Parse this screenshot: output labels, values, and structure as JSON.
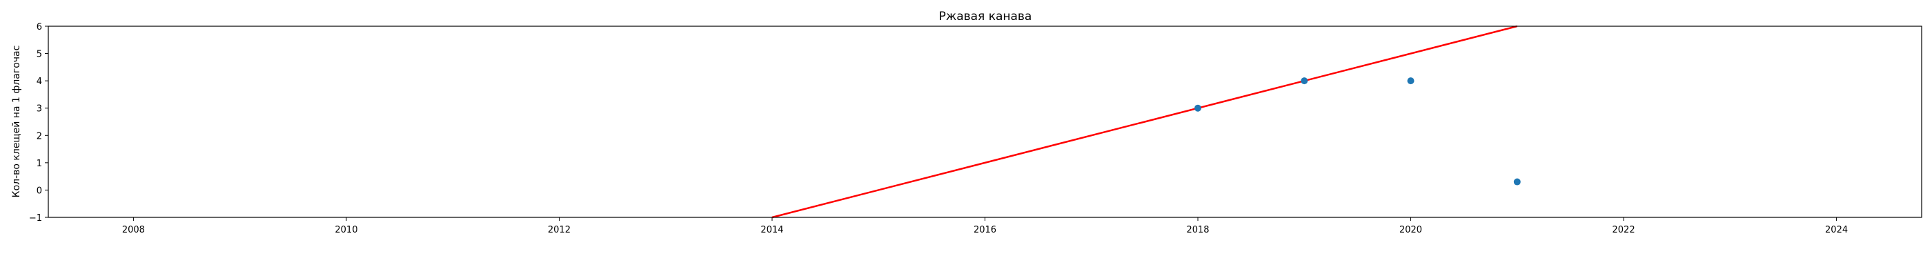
{
  "chart_data": {
    "type": "scatter",
    "title": "Ржавая канава",
    "xlabel": "",
    "ylabel": "Кол-во клещей на 1 флагочас",
    "xlim": [
      2007.2,
      2024.8
    ],
    "ylim": [
      -1,
      6
    ],
    "grid": false,
    "legend": "none",
    "x_ticks": [
      2008,
      2010,
      2012,
      2014,
      2016,
      2018,
      2020,
      2022,
      2024
    ],
    "y_ticks": [
      -1,
      0,
      1,
      2,
      3,
      4,
      5,
      6
    ],
    "points": [
      {
        "x": 2018,
        "y": 3
      },
      {
        "x": 2019,
        "y": 4
      },
      {
        "x": 2020,
        "y": 4
      },
      {
        "x": 2021,
        "y": 0.3
      }
    ],
    "trend_line": {
      "x": [
        2014,
        2021
      ],
      "y": [
        -1,
        6
      ]
    },
    "colors": {
      "points": "#1f77b4",
      "trend_line": "#ff0000",
      "axes": "#000000"
    }
  }
}
